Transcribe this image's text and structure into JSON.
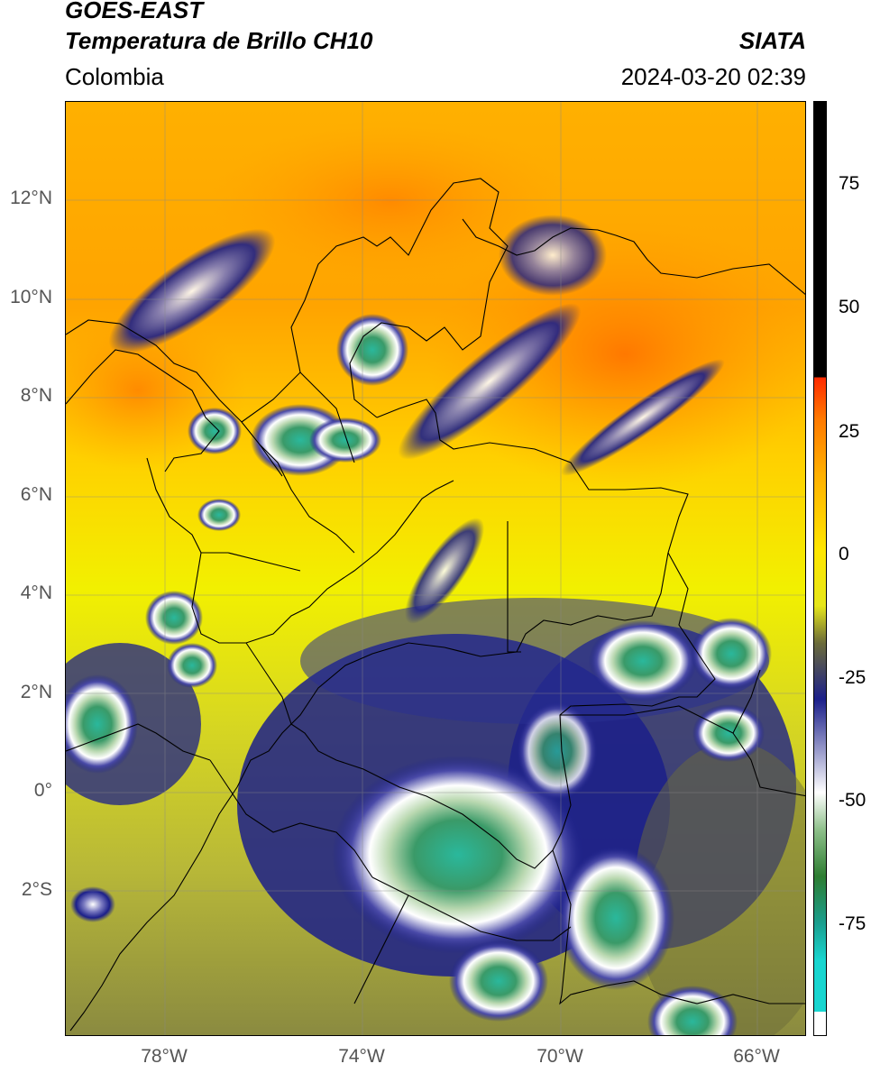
{
  "header": {
    "satellite": "GOES-EAST",
    "product": "Temperatura de Brillo CH10",
    "region": "Colombia",
    "source": "SIATA",
    "datetime": "2024-03-20 02:39"
  },
  "map": {
    "lat_labels": [
      "12°N",
      "10°N",
      "8°N",
      "6°N",
      "4°N",
      "2°N",
      "0°",
      "2°S"
    ],
    "lon_labels": [
      "78°W",
      "74°W",
      "70°W",
      "66°W"
    ]
  },
  "colorbar": {
    "ticks": [
      "75",
      "50",
      "25",
      "0",
      "-25",
      "-50",
      "-75"
    ],
    "colors": [
      "#ffffff",
      "#19d6d0",
      "#1a9e8e",
      "#2e7d32",
      "#8ec08a",
      "#ffffff",
      "#1b1f8a",
      "#6b6b3a",
      "#e6e61a",
      "#ffe600",
      "#ffb000",
      "#ff7a00",
      "#ff2a00",
      "#000000"
    ]
  }
}
